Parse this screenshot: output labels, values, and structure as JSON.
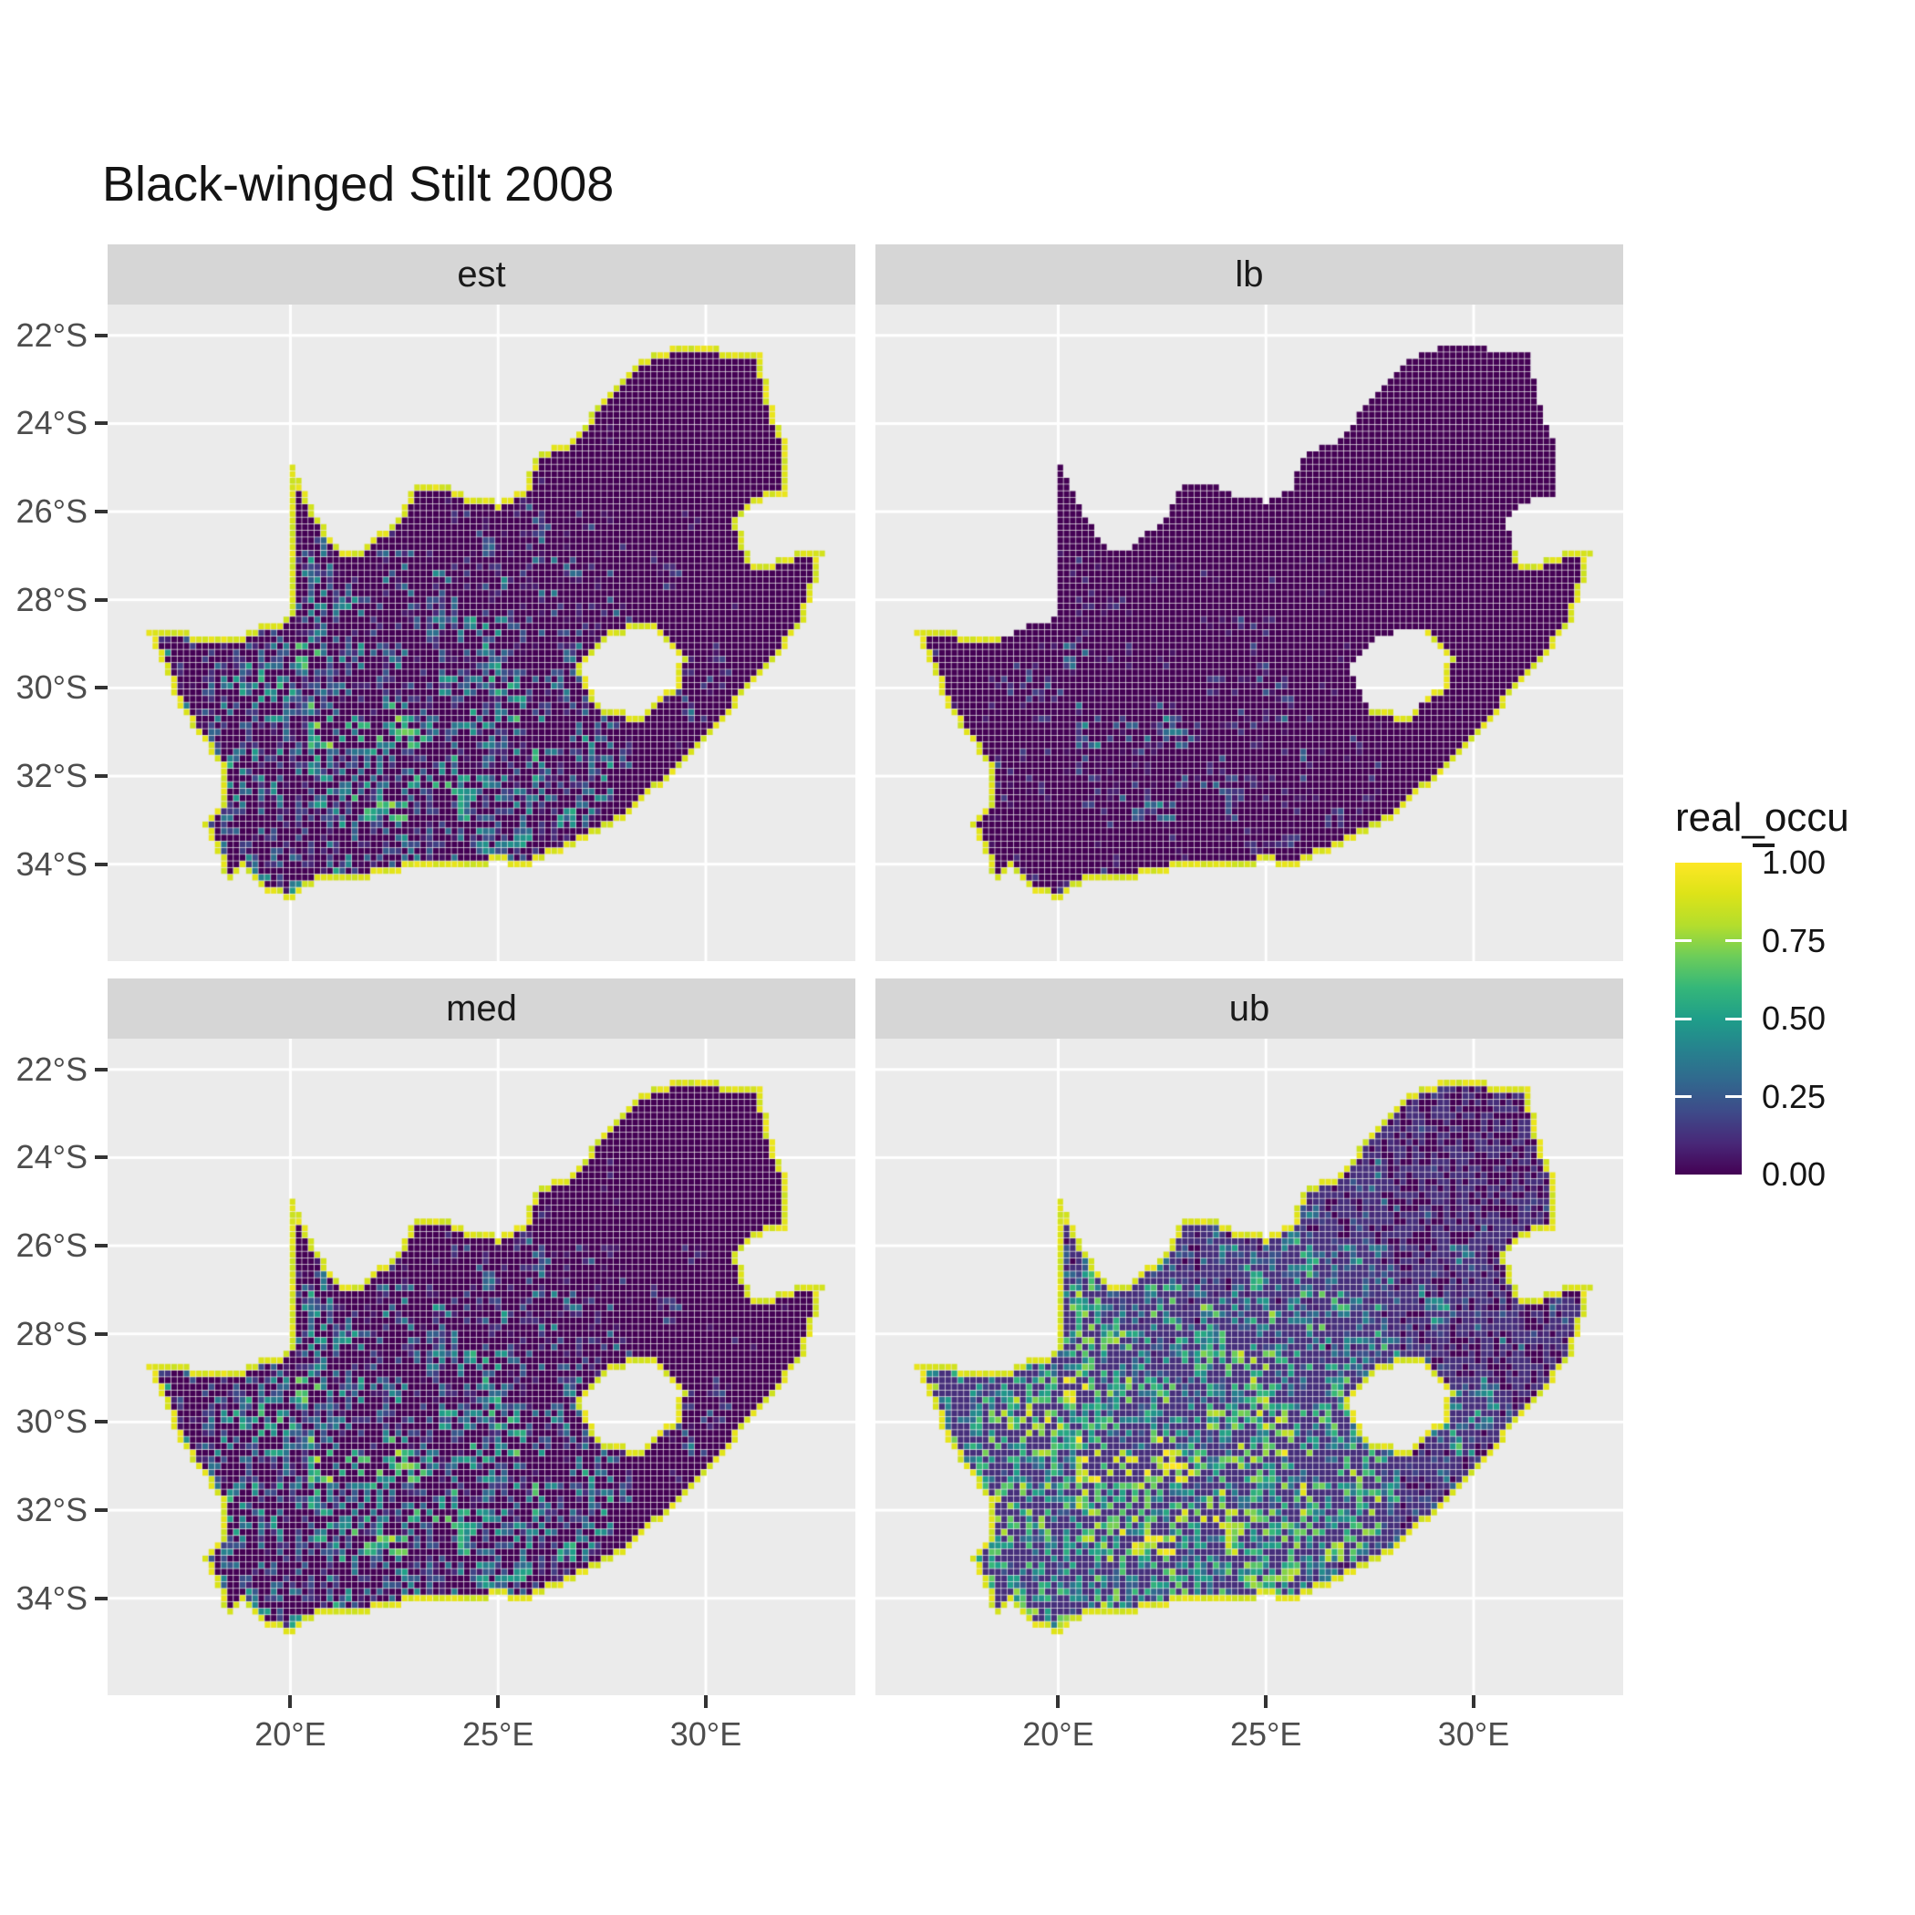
{
  "title": "Black-winged Stilt 2008",
  "facets": [
    {
      "label": "est",
      "shift": 0.0,
      "rim_all": true
    },
    {
      "label": "lb",
      "shift": -0.32,
      "rim_all": false
    },
    {
      "label": "med",
      "shift": 0.05,
      "rim_all": true
    },
    {
      "label": "ub",
      "shift": 0.32,
      "rim_all": true
    }
  ],
  "axes": {
    "x_ticks": [
      {
        "value": 20,
        "label": "20°E"
      },
      {
        "value": 25,
        "label": "25°E"
      },
      {
        "value": 30,
        "label": "30°E"
      }
    ],
    "y_ticks": [
      {
        "value": 22,
        "label": "22°S"
      },
      {
        "value": 24,
        "label": "24°S"
      },
      {
        "value": 26,
        "label": "26°S"
      },
      {
        "value": 28,
        "label": "28°S"
      },
      {
        "value": 30,
        "label": "30°S"
      },
      {
        "value": 32,
        "label": "32°S"
      },
      {
        "value": 34,
        "label": "34°S"
      }
    ]
  },
  "legend": {
    "title": "real_occu",
    "entries": [
      {
        "value": 1.0,
        "label": "1.00"
      },
      {
        "value": 0.75,
        "label": "0.75"
      },
      {
        "value": 0.5,
        "label": "0.50"
      },
      {
        "value": 0.25,
        "label": "0.25"
      },
      {
        "value": 0.0,
        "label": "0.00"
      }
    ]
  },
  "colors": {
    "background": "#ffffff",
    "panel_bg": "#ebebeb",
    "strip_bg": "#d6d6d6",
    "gridline": "#ffffff",
    "axis_text": "#4d4d4d",
    "tick_mark": "#333333",
    "title_text": "#141414",
    "viridis_stops": [
      {
        "p": 0.0,
        "c": "#440154"
      },
      {
        "p": 0.1,
        "c": "#482878"
      },
      {
        "p": 0.2,
        "c": "#3E4A89"
      },
      {
        "p": 0.3,
        "c": "#31688E"
      },
      {
        "p": 0.4,
        "c": "#26828E"
      },
      {
        "p": 0.5,
        "c": "#1F9E89"
      },
      {
        "p": 0.6,
        "c": "#35B779"
      },
      {
        "p": 0.7,
        "c": "#6DCD59"
      },
      {
        "p": 0.8,
        "c": "#B4DE2C"
      },
      {
        "p": 0.9,
        "c": "#DDE318"
      },
      {
        "p": 1.0,
        "c": "#FDE725"
      }
    ]
  },
  "chart_data": {
    "type": "heatmap",
    "title": "Black-winged Stilt 2008",
    "variable": "real_occu",
    "value_range": [
      0,
      1
    ],
    "colorscale": "viridis",
    "region": "South Africa",
    "facets": [
      "est",
      "lb",
      "med",
      "ub"
    ],
    "facet_character": {
      "est": "mixed: high (yellow/green) in west and central Karoo, low (dark blue/purple) in northeast and east coast, yellow coastal rim",
      "lb": "lowest values: mostly dark purple/blue with green-yellow patches in central west, yellow coastal rim",
      "med": "similar to est, slightly brighter in southwest, dark in northeast",
      "ub": "highest values: west and central nearly solid yellow with dark speckles, northeast green/teal with purple patches"
    },
    "x_tick_labels": [
      "20°E",
      "25°E",
      "30°E"
    ],
    "y_tick_labels": [
      "22°S",
      "24°S",
      "26°S",
      "28°S",
      "30°S",
      "32°S",
      "34°S"
    ],
    "legend_tick_labels": [
      "1.00",
      "0.75",
      "0.50",
      "0.25",
      "0.00"
    ],
    "map": {
      "cell_size_deg": 0.15,
      "lon_range": [
        15.6,
        33.6
      ],
      "lat_range": [
        -36.2,
        -21.3
      ],
      "outline": [
        [
          20.0,
          -24.75
        ],
        [
          20.35,
          -25.6
        ],
        [
          20.7,
          -26.2
        ],
        [
          21.15,
          -26.85
        ],
        [
          21.8,
          -26.8
        ],
        [
          22.6,
          -26.1
        ],
        [
          22.95,
          -25.35
        ],
        [
          23.6,
          -25.3
        ],
        [
          24.2,
          -25.6
        ],
        [
          25.0,
          -25.75
        ],
        [
          25.6,
          -25.5
        ],
        [
          25.9,
          -24.75
        ],
        [
          26.9,
          -24.3
        ],
        [
          27.5,
          -23.4
        ],
        [
          28.35,
          -22.6
        ],
        [
          29.35,
          -22.2
        ],
        [
          30.3,
          -22.3
        ],
        [
          31.3,
          -22.35
        ],
        [
          31.55,
          -23.5
        ],
        [
          31.9,
          -24.3
        ],
        [
          32.0,
          -25.6
        ],
        [
          31.4,
          -25.72
        ],
        [
          30.82,
          -26.1
        ],
        [
          30.9,
          -26.8
        ],
        [
          31.2,
          -27.2
        ],
        [
          31.97,
          -27.05
        ],
        [
          32.13,
          -26.86
        ],
        [
          32.85,
          -26.86
        ],
        [
          32.55,
          -27.9
        ],
        [
          32.35,
          -28.5
        ],
        [
          31.8,
          -29.2
        ],
        [
          31.05,
          -30.0
        ],
        [
          30.3,
          -30.9
        ],
        [
          29.5,
          -31.65
        ],
        [
          28.8,
          -32.3
        ],
        [
          28.0,
          -32.95
        ],
        [
          27.0,
          -33.5
        ],
        [
          26.4,
          -33.75
        ],
        [
          25.65,
          -34.05
        ],
        [
          25.0,
          -33.98
        ],
        [
          24.0,
          -34.1
        ],
        [
          23.0,
          -34.1
        ],
        [
          22.2,
          -34.2
        ],
        [
          21.5,
          -34.4
        ],
        [
          20.5,
          -34.45
        ],
        [
          20.0,
          -34.82
        ],
        [
          19.4,
          -34.6
        ],
        [
          18.8,
          -34.1
        ],
        [
          18.48,
          -34.36
        ],
        [
          18.33,
          -34.1
        ],
        [
          18.3,
          -33.85
        ],
        [
          17.9,
          -33.0
        ],
        [
          18.3,
          -32.6
        ],
        [
          18.25,
          -31.7
        ],
        [
          17.3,
          -30.4
        ],
        [
          17.0,
          -29.6
        ],
        [
          16.5,
          -28.6
        ],
        [
          17.6,
          -28.75
        ],
        [
          18.6,
          -28.9
        ],
        [
          19.5,
          -28.5
        ],
        [
          20.0,
          -28.4
        ]
      ],
      "lesotho_hole": [
        [
          27.0,
          -29.6
        ],
        [
          27.55,
          -28.9
        ],
        [
          28.6,
          -28.6
        ],
        [
          29.4,
          -29.3
        ],
        [
          29.2,
          -29.95
        ],
        [
          28.4,
          -30.6
        ],
        [
          27.4,
          -30.4
        ]
      ]
    }
  }
}
